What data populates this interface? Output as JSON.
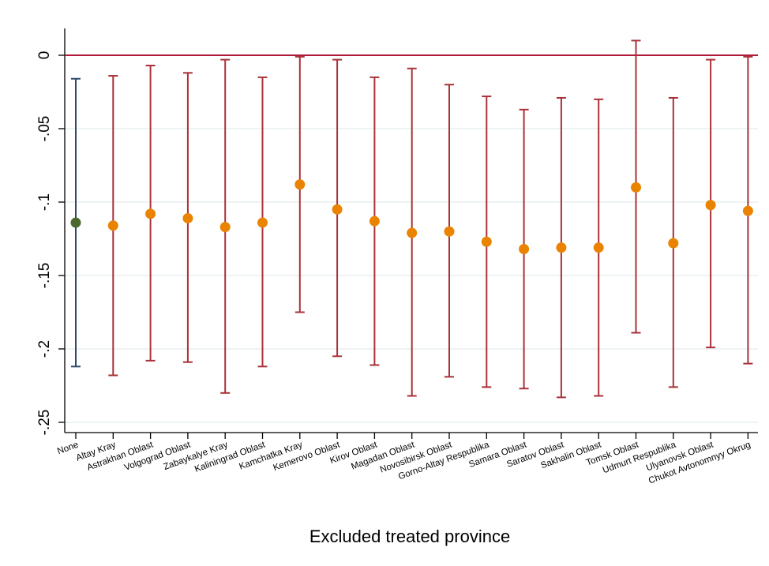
{
  "chart_data": {
    "type": "scatter",
    "title": "",
    "xlabel": "Excluded treated province",
    "ylabel": "",
    "ylim": [
      -0.25,
      0
    ],
    "yticks": [
      0,
      -0.05,
      -0.1,
      -0.15,
      -0.2,
      -0.25
    ],
    "ytick_labels": [
      "0",
      "-.05",
      "-.1",
      "-.15",
      "-.2",
      "-.25"
    ],
    "grid": true,
    "reference_line": 0,
    "categories": [
      "None",
      "Altay Kray",
      "Astrakhan Oblast",
      "Volgograd Oblast",
      "Zabaykalye Kray",
      "Kaliningrad Oblast",
      "Kamchatka Kray",
      "Kemerovo Oblast",
      "Kirov Oblast",
      "Magadan Oblast",
      "Novosibirsk Oblast",
      "Gorno-Altay Respublika",
      "Samara Oblast",
      "Saratov Oblast",
      "Sakhalin Oblast",
      "Tomsk Oblast",
      "Udmurt Respublika",
      "Ulyanovsk Oblast",
      "Chukot Avtonomnyy Okrug"
    ],
    "estimate": [
      -0.114,
      -0.116,
      -0.108,
      -0.111,
      -0.117,
      -0.114,
      -0.088,
      -0.105,
      -0.113,
      -0.121,
      -0.12,
      -0.127,
      -0.132,
      -0.131,
      -0.131,
      -0.09,
      -0.128,
      -0.102,
      -0.106
    ],
    "ci_lower": [
      -0.212,
      -0.218,
      -0.208,
      -0.209,
      -0.23,
      -0.212,
      -0.175,
      -0.205,
      -0.211,
      -0.232,
      -0.219,
      -0.226,
      -0.227,
      -0.233,
      -0.232,
      -0.189,
      -0.226,
      -0.199,
      -0.21
    ],
    "ci_upper": [
      -0.016,
      -0.014,
      -0.007,
      -0.012,
      -0.003,
      -0.015,
      -0.001,
      -0.003,
      -0.015,
      -0.009,
      -0.02,
      -0.028,
      -0.037,
      -0.029,
      -0.03,
      0.01,
      -0.029,
      -0.003,
      -0.001
    ],
    "colors": {
      "baseline_marker": "#4a6a2e",
      "baseline_ci": "#2b4a6e",
      "marker": "#e98300",
      "ci": "#a83238",
      "reference_line": "#b01c38",
      "grid": "#e3ecee"
    }
  }
}
